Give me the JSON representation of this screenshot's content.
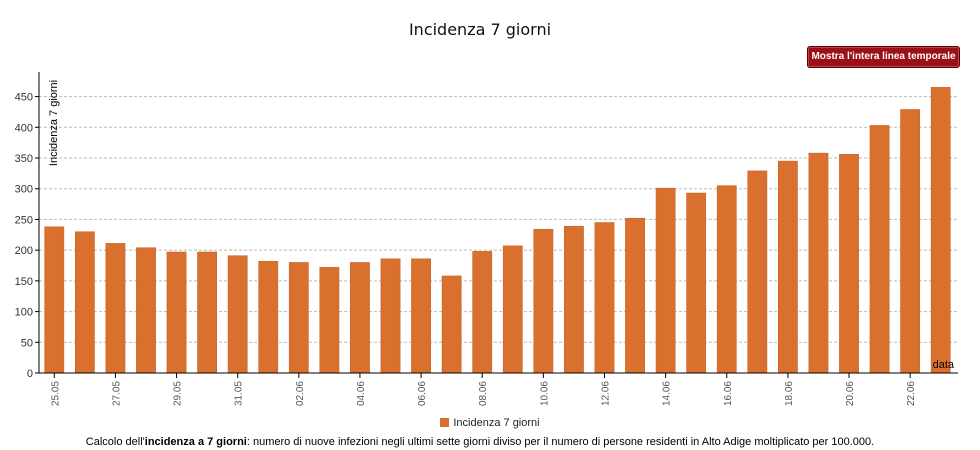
{
  "button": {
    "label": "Mostra l'intera linea temporale"
  },
  "footnote": {
    "prefix": "Calcolo dell'",
    "bold": "incidenza a 7 giorni",
    "rest": ": numero di nuove infezioni negli ultimi sette giorni diviso per il numero di persone residenti in Alto Adige moltiplicato per 100.000."
  },
  "colors": {
    "bar": "#d9702e",
    "bar_stroke": "#c45f22",
    "button": "#9b1016",
    "grid": "#bbbbbb"
  },
  "chart_data": {
    "type": "bar",
    "title": "Incidenza 7 giorni",
    "xlabel": "data",
    "ylabel": "Incidenza 7 giorni",
    "ylim": [
      0,
      490
    ],
    "yticks": [
      0,
      50,
      100,
      150,
      200,
      250,
      300,
      350,
      400,
      450
    ],
    "grid": "horizontal dashed",
    "legend_position": "bottom",
    "tick_labels": [
      "25.05",
      "27.05",
      "29.05",
      "31.05",
      "02.06",
      "04.06",
      "06.06",
      "08.06",
      "10.06",
      "12.06",
      "14.06",
      "16.06",
      "18.06",
      "20.06",
      "22.06"
    ],
    "categories": [
      "25.05",
      "26.05",
      "27.05",
      "28.05",
      "29.05",
      "30.05",
      "31.05",
      "01.06",
      "02.06",
      "03.06",
      "04.06",
      "05.06",
      "06.06",
      "07.06",
      "08.06",
      "09.06",
      "10.06",
      "11.06",
      "12.06",
      "13.06",
      "14.06",
      "15.06",
      "16.06",
      "17.06",
      "18.06",
      "19.06",
      "20.06",
      "21.06",
      "22.06",
      "23.06"
    ],
    "series": [
      {
        "name": "Incidenza 7 giorni",
        "values": [
          238,
          230,
          211,
          204,
          197,
          197,
          191,
          182,
          180,
          172,
          180,
          186,
          186,
          158,
          198,
          207,
          234,
          239,
          245,
          252,
          301,
          293,
          305,
          329,
          345,
          358,
          356,
          403,
          429,
          465
        ]
      }
    ]
  }
}
